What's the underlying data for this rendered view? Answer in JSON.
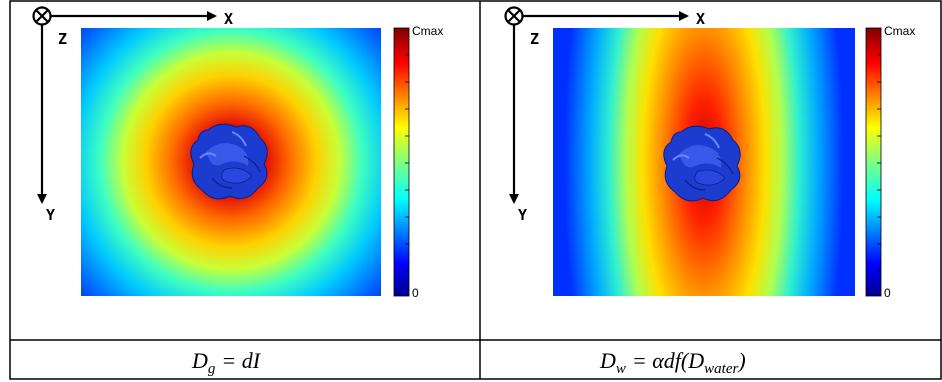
{
  "axes": {
    "x_label": "X",
    "y_label": "Y",
    "z_label": "Z"
  },
  "colorbar": {
    "max_label": "Cmax",
    "min_label": "0"
  },
  "panels": [
    {
      "caption_main": "D",
      "caption_sub": "g",
      "caption_rest": "= dI",
      "pattern": "radial"
    },
    {
      "caption_main": "D",
      "caption_sub": "w",
      "caption_rest": "= αdf(D",
      "caption_sub2": "water",
      "caption_end": ")",
      "pattern": "vertical-elliptic"
    }
  ],
  "colors": {
    "jet_low": "#00008f",
    "jet_high": "#800000",
    "blob": "#1f3fd0"
  }
}
